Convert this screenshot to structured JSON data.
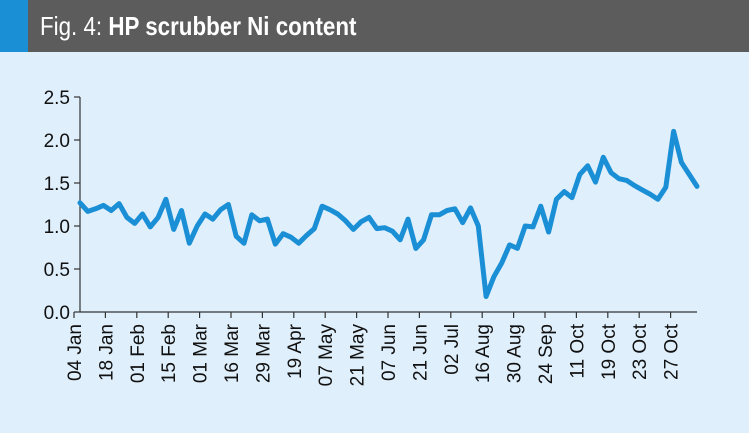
{
  "header": {
    "figure_label": "Fig. 4:",
    "title": "HP scrubber Ni content",
    "accent_color": "#1b8fd6",
    "bar_color": "#5c5c5c"
  },
  "chart_data": {
    "type": "line",
    "title": "HP scrubber Ni content",
    "xlabel": "",
    "ylabel": "",
    "ylim": [
      0,
      2.5
    ],
    "yticks": [
      0.0,
      0.5,
      1.0,
      1.5,
      2.0,
      2.5
    ],
    "ytick_labels": [
      "0.0",
      "0.5",
      "1.0",
      "1.5",
      "2.0",
      "2.5"
    ],
    "xtick_labels": [
      "04 Jan",
      "18 Jan",
      "01 Feb",
      "15 Feb",
      "01 Mar",
      "16 Mar",
      "29 Mar",
      "19 Apr",
      "07 May",
      "21 May",
      "07 Jun",
      "21 Jun",
      "02 Jul",
      "16 Aug",
      "30 Aug",
      "24 Sep",
      "11 Oct",
      "19 Oct",
      "23 Oct",
      "27 Oct"
    ],
    "grid": false,
    "line_color": "#1b8fd6",
    "background_color": "#dfeffb",
    "series": [
      {
        "values": [
          1.27,
          1.17,
          1.2,
          1.24,
          1.18,
          1.26,
          1.1,
          1.03,
          1.14,
          0.99,
          1.1,
          1.31,
          0.96,
          1.18,
          0.8,
          1.0,
          1.14,
          1.08,
          1.19,
          1.25,
          0.88,
          0.8,
          1.13,
          1.06,
          1.08,
          0.79,
          0.91,
          0.87,
          0.8,
          0.89,
          0.97,
          1.23,
          1.19,
          1.14,
          1.06,
          0.96,
          1.05,
          1.1,
          0.97,
          0.98,
          0.94,
          0.84,
          1.08,
          0.74,
          0.84,
          1.13,
          1.13,
          1.18,
          1.2,
          1.04,
          1.21,
          1.0,
          0.18,
          0.41,
          0.57,
          0.78,
          0.74,
          1.0,
          0.99,
          1.23,
          0.93,
          1.31,
          1.4,
          1.33,
          1.6,
          1.7,
          1.51,
          1.8,
          1.62,
          1.55,
          1.53,
          1.47,
          1.42,
          1.37,
          1.31,
          1.45,
          2.1,
          1.74,
          1.6,
          1.46
        ]
      }
    ]
  }
}
